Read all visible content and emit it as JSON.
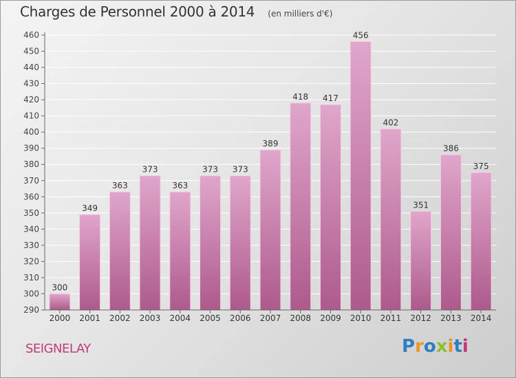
{
  "chart_data": {
    "type": "bar",
    "title": "Charges de Personnel 2000 à 2014",
    "subtitle": "(en milliers d'€)",
    "categories": [
      "2000",
      "2001",
      "2002",
      "2003",
      "2004",
      "2005",
      "2006",
      "2007",
      "2008",
      "2009",
      "2010",
      "2011",
      "2012",
      "2013",
      "2014"
    ],
    "values": [
      300,
      349,
      363,
      373,
      363,
      373,
      373,
      389,
      418,
      417,
      456,
      402,
      351,
      386,
      375
    ],
    "ylim": [
      290,
      460
    ],
    "yticks": [
      290,
      300,
      310,
      320,
      330,
      340,
      350,
      360,
      370,
      380,
      390,
      400,
      410,
      420,
      430,
      440,
      450,
      460
    ],
    "grid": true,
    "xlabel": "",
    "ylabel": ""
  },
  "footer": {
    "town": "SEIGNELAY",
    "logo": "Proxiti"
  },
  "colors": {
    "bar_top": "#e0a6cb",
    "bar_bottom": "#ad5a8c",
    "bar_edge": "#f3cfe4",
    "axis": "#666666",
    "grid": "#ffffff",
    "town": "#c03a78"
  }
}
